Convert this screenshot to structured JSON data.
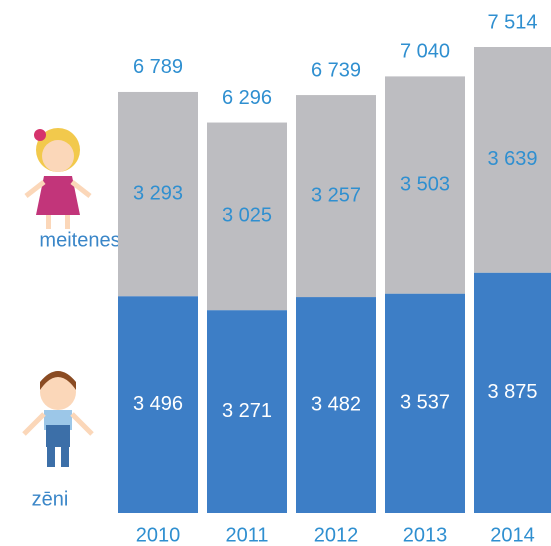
{
  "chart_data": {
    "type": "stacked-bar",
    "categories": [
      "2010",
      "2011",
      "2012",
      "2013",
      "2014"
    ],
    "series": [
      {
        "name": "zēni",
        "color": "#3d7ec6",
        "values": [
          3496,
          3271,
          3482,
          3537,
          3875
        ],
        "value_labels": [
          "3 496",
          "3 271",
          "3 482",
          "3 537",
          "3 875"
        ]
      },
      {
        "name": "meitenes",
        "color": "#bdbdc1",
        "values": [
          3293,
          3025,
          3257,
          3503,
          3639
        ],
        "value_labels": [
          "3 293",
          "3 025",
          "3 257",
          "3 503",
          "3 639"
        ]
      }
    ],
    "totals": [
      6789,
      6296,
      6739,
      7040,
      7514
    ],
    "total_labels": [
      "6 789",
      "6 296",
      "6 739",
      "7 040",
      "7 514"
    ]
  }
}
